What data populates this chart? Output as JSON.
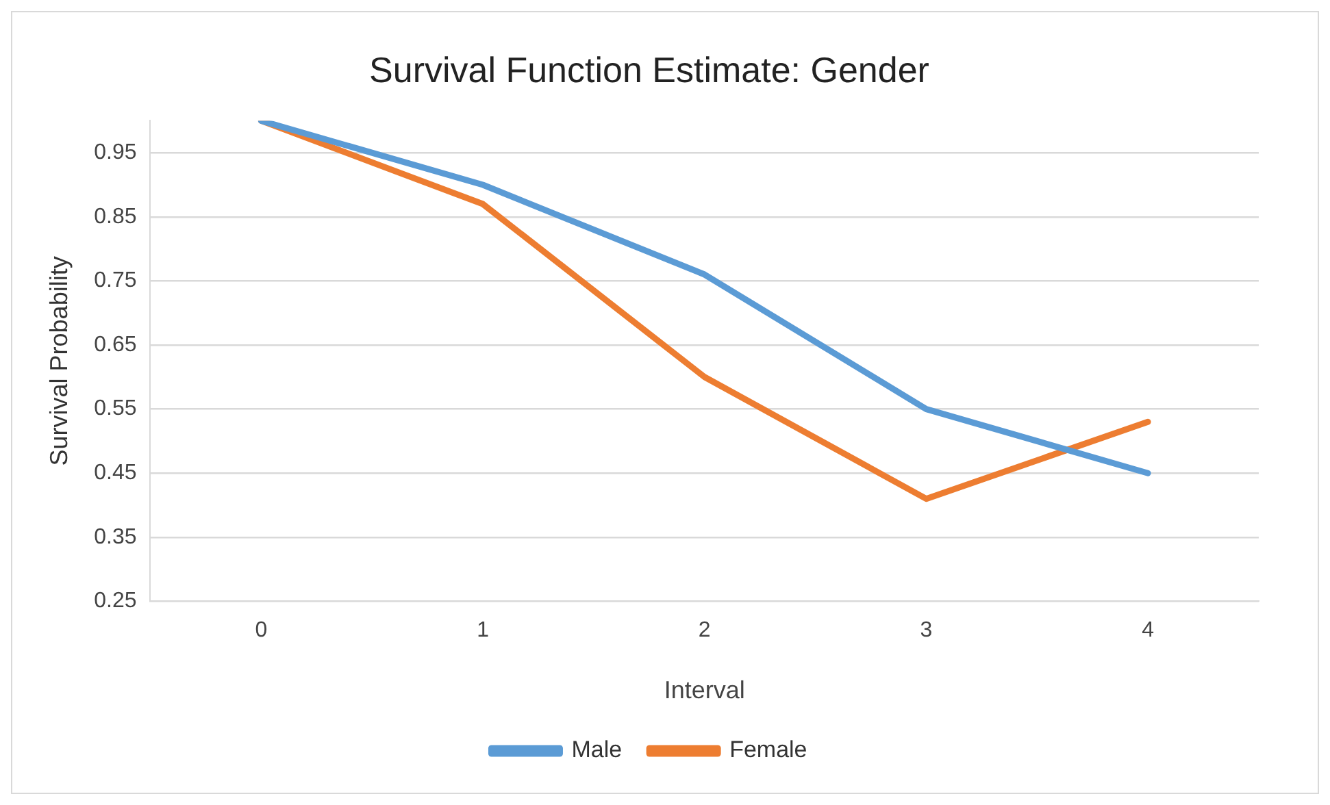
{
  "chart_data": {
    "type": "line",
    "title": "Survival Function Estimate: Gender",
    "xlabel": "Interval",
    "ylabel": "Survival Probability",
    "categories": [
      "0",
      "1",
      "2",
      "3",
      "4"
    ],
    "series": [
      {
        "name": "Male",
        "color": "#5b9bd5",
        "values": [
          1.0,
          0.9,
          0.76,
          0.55,
          0.45
        ]
      },
      {
        "name": "Female",
        "color": "#ed7d31",
        "values": [
          1.0,
          0.87,
          0.6,
          0.41,
          0.53
        ]
      }
    ],
    "ylim": [
      0.25,
      1.0
    ],
    "yticks": [
      0.25,
      0.35,
      0.45,
      0.55,
      0.65,
      0.75,
      0.85,
      0.95
    ],
    "grid": "y",
    "legend": "bottom",
    "marker": "none",
    "line_style": "solid"
  }
}
